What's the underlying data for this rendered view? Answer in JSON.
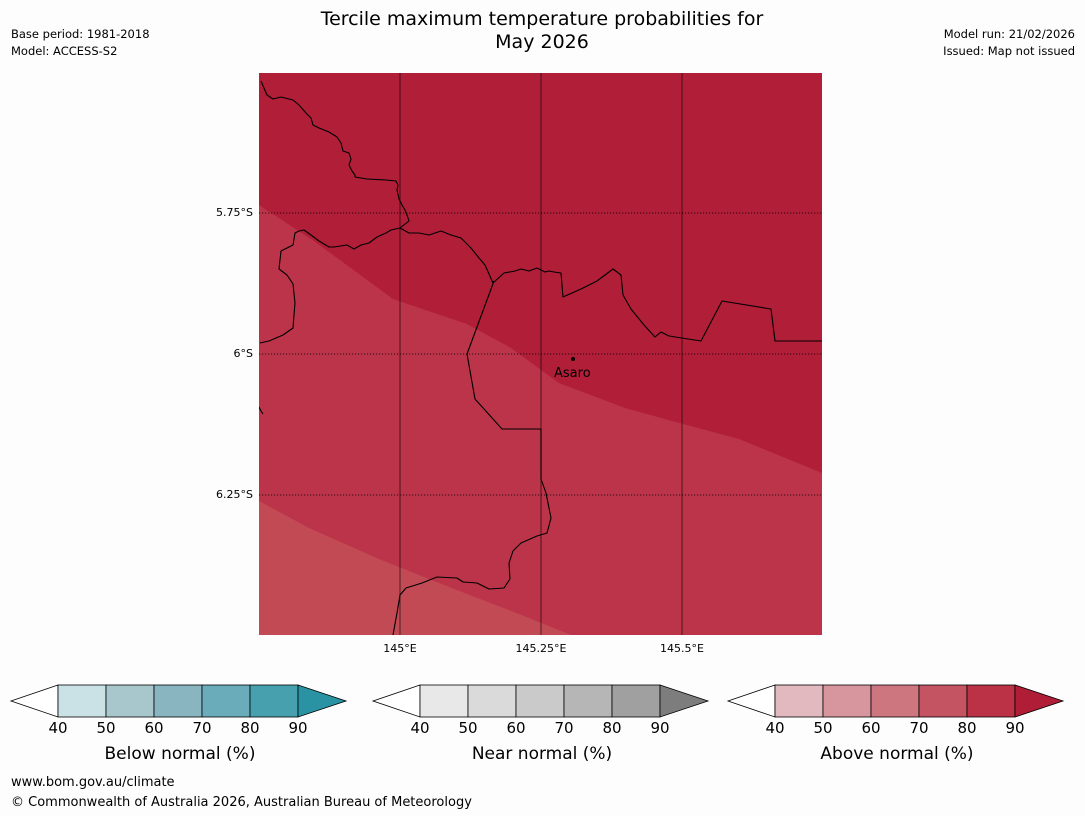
{
  "title_line1": "Tercile maximum temperature probabilities for",
  "title_line2": "May 2026",
  "meta_left": {
    "base_period": "Base period: 1981-2018",
    "model": "Model: ACCESS-S2"
  },
  "meta_right": {
    "model_run": "Model run: 21/02/2026",
    "issued": "Issued: Map not issued"
  },
  "map": {
    "latitude_labels": [
      "5.75°S",
      "6°S",
      "6.25°S"
    ],
    "longitude_labels": [
      "145°E",
      "145.25°E",
      "145.5°E"
    ],
    "place_label": "Asaro",
    "zone_colors": {
      "above_90": "#b01e38",
      "above_80": "#bc3449",
      "above_70": "#c24a54"
    }
  },
  "colorbars": [
    {
      "label": "Below normal (%)",
      "ticks": [
        "40",
        "50",
        "60",
        "70",
        "80",
        "90"
      ],
      "colors": [
        "#ffffff",
        "#cae2e6",
        "#a8c7cc",
        "#89b5c0",
        "#6aacb9",
        "#46a0ae",
        "#2a93a3"
      ]
    },
    {
      "label": "Near normal (%)",
      "ticks": [
        "40",
        "50",
        "60",
        "70",
        "80",
        "90"
      ],
      "colors": [
        "#ffffff",
        "#e8e8e8",
        "#dadada",
        "#cacaca",
        "#b6b6b6",
        "#a0a0a0",
        "#7d7d7d"
      ]
    },
    {
      "label": "Above normal (%)",
      "ticks": [
        "40",
        "50",
        "60",
        "70",
        "80",
        "90"
      ],
      "colors": [
        "#ffffff",
        "#e2b9bf",
        "#d7959d",
        "#cd7680",
        "#c55462",
        "#bb3247",
        "#b01d37"
      ]
    }
  ],
  "footer": {
    "url": "www.bom.gov.au/climate",
    "copyright": "© Commonwealth of Australia 2026, Australian Bureau of Meteorology"
  }
}
